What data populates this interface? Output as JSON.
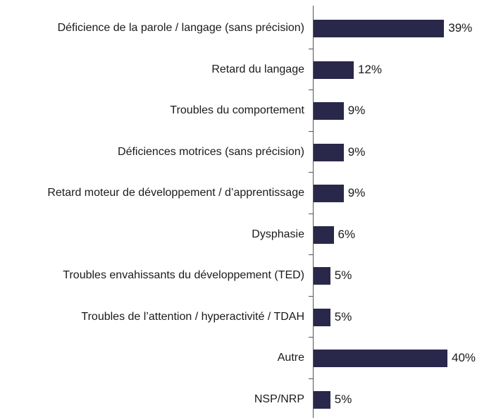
{
  "chart_data": {
    "type": "bar",
    "orientation": "horizontal",
    "categories": [
      "Déficience de la parole / langage (sans précision)",
      "Retard du langage",
      "Troubles du comportement",
      "Déficiences motrices (sans précision)",
      "Retard moteur de développement / d’apprentissage",
      "Dysphasie",
      "Troubles envahissants du développement (TED)",
      "Troubles de l’attention / hyperactivité / TDAH",
      "Autre",
      "NSP/NRP"
    ],
    "values": [
      39,
      12,
      9,
      9,
      9,
      6,
      5,
      5,
      40,
      5
    ],
    "value_labels": [
      "39%",
      "12%",
      "9%",
      "9%",
      "9%",
      "6%",
      "5%",
      "5%",
      "40%",
      "5%"
    ],
    "color": "#29284a"
  }
}
